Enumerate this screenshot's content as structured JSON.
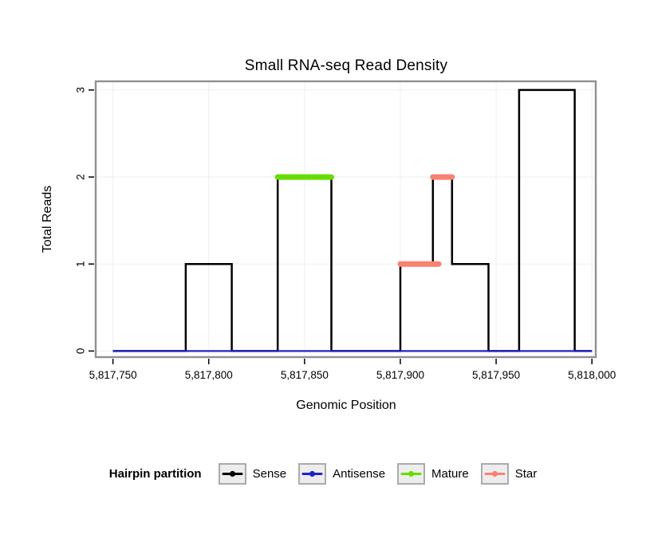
{
  "title": "Small RNA-seq Read Density",
  "legend": {
    "title": "Hairpin partition",
    "items": [
      {
        "label": "Sense",
        "color": "#000000"
      },
      {
        "label": "Antisense",
        "color": "#2222CC"
      },
      {
        "label": "Mature",
        "color": "#66DD00"
      },
      {
        "label": "Star",
        "color": "#FA8072"
      }
    ]
  },
  "chart_data": {
    "type": "line",
    "title": "Small RNA-seq Read Density",
    "xlabel": "Genomic Position",
    "ylabel": "Total Reads",
    "xlim": [
      5817741,
      5818002
    ],
    "ylim": [
      -0.07,
      3.1
    ],
    "x_ticks": [
      5817750,
      5817800,
      5817850,
      5817900,
      5817950,
      5818000
    ],
    "x_tick_labels": [
      "5,817,750",
      "5,817,800",
      "5,817,850",
      "5,817,900",
      "5,817,950",
      "5,818,000"
    ],
    "y_ticks": [
      0,
      1,
      2,
      3
    ],
    "y_tick_labels": [
      "0",
      "1",
      "2",
      "3"
    ],
    "grid": true,
    "legend_position": "bottom",
    "style": {
      "panel_border": "#909090",
      "grid_color": "#EFEFEF",
      "key_box_fill": "#EDEDED",
      "key_box_border": "#ABABAB"
    },
    "series": [
      {
        "name": "Sense",
        "color": "#000000",
        "width": 2.5,
        "render": "step",
        "segments": [
          [
            5817750,
            5817788,
            0
          ],
          [
            5817788,
            5817812,
            1
          ],
          [
            5817812,
            5817836,
            0
          ],
          [
            5817836,
            5817864,
            2
          ],
          [
            5817864,
            5817900,
            0
          ],
          [
            5817900,
            5817917,
            1
          ],
          [
            5817917,
            5817927,
            2
          ],
          [
            5817927,
            5817946,
            1
          ],
          [
            5817946,
            5817962,
            0
          ],
          [
            5817962,
            5817991,
            3
          ],
          [
            5817991,
            5818000,
            0
          ]
        ]
      },
      {
        "name": "Antisense",
        "color": "#2222CC",
        "width": 2.2,
        "render": "step",
        "segments": [
          [
            5817750,
            5818000,
            0
          ]
        ]
      },
      {
        "name": "Mature",
        "color": "#66DD00",
        "width": 7,
        "render": "segment",
        "segments": [
          [
            5817836,
            5817864,
            2
          ]
        ]
      },
      {
        "name": "Star",
        "color": "#FA8072",
        "width": 7,
        "render": "segment",
        "segments": [
          [
            5817900,
            5817920,
            1
          ],
          [
            5817917,
            5817927,
            2
          ]
        ]
      }
    ]
  }
}
